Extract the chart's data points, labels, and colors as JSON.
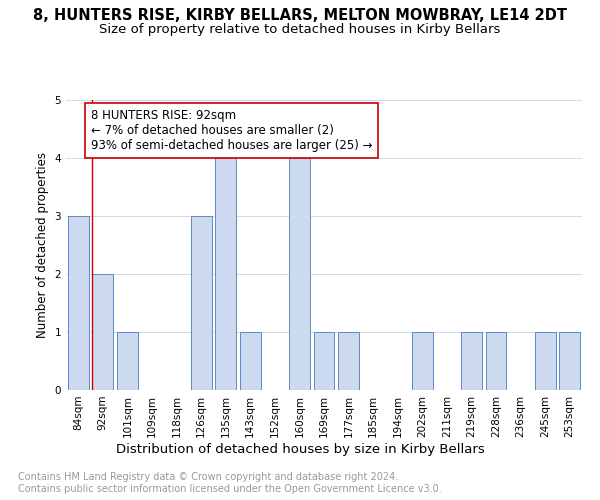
{
  "title1": "8, HUNTERS RISE, KIRBY BELLARS, MELTON MOWBRAY, LE14 2DT",
  "title2": "Size of property relative to detached houses in Kirby Bellars",
  "xlabel": "Distribution of detached houses by size in Kirby Bellars",
  "ylabel": "Number of detached properties",
  "categories": [
    "84sqm",
    "92sqm",
    "101sqm",
    "109sqm",
    "118sqm",
    "126sqm",
    "135sqm",
    "143sqm",
    "152sqm",
    "160sqm",
    "169sqm",
    "177sqm",
    "185sqm",
    "194sqm",
    "202sqm",
    "211sqm",
    "219sqm",
    "228sqm",
    "236sqm",
    "245sqm",
    "253sqm"
  ],
  "values": [
    3,
    2,
    1,
    0,
    0,
    3,
    4,
    1,
    0,
    4,
    1,
    1,
    0,
    0,
    1,
    0,
    1,
    1,
    0,
    1,
    1
  ],
  "bar_color": "#ccd9ee",
  "bar_edge_color": "#5b8ac7",
  "highlight_index": 1,
  "highlight_line_color": "#cc0000",
  "annotation_text": "8 HUNTERS RISE: 92sqm\n← 7% of detached houses are smaller (2)\n93% of semi-detached houses are larger (25) →",
  "annotation_box_color": "#ffffff",
  "annotation_box_edge_color": "#cc0000",
  "ylim": [
    0,
    5
  ],
  "yticks": [
    0,
    1,
    2,
    3,
    4,
    5
  ],
  "footnote": "Contains HM Land Registry data © Crown copyright and database right 2024.\nContains public sector information licensed under the Open Government Licence v3.0.",
  "background_color": "#ffffff",
  "grid_color": "#d0d8e8",
  "title1_fontsize": 10.5,
  "title2_fontsize": 9.5,
  "xlabel_fontsize": 9.5,
  "ylabel_fontsize": 8.5,
  "tick_fontsize": 7.5,
  "annotation_fontsize": 8.5,
  "footnote_fontsize": 7.0
}
